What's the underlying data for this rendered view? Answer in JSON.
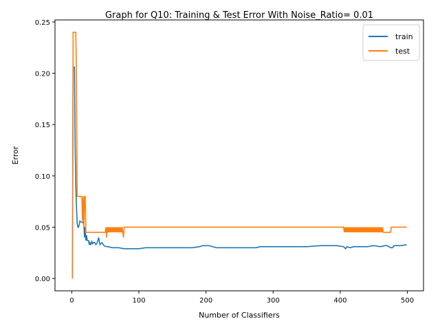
{
  "chart_data": {
    "type": "line",
    "title": "Graph for Q10: Training & Test Error With Noise_Ratio= 0.01",
    "xlabel": "Number of Classifiers",
    "ylabel": "Error",
    "xlim": [
      -25,
      524
    ],
    "ylim": [
      -0.012,
      0.252
    ],
    "xticks": [
      0,
      100,
      200,
      300,
      400,
      500
    ],
    "xtick_labels": [
      "0",
      "100",
      "200",
      "300",
      "400",
      "500"
    ],
    "yticks": [
      0,
      0.05,
      0.1,
      0.15,
      0.2,
      0.25
    ],
    "ytick_labels": [
      "0.00",
      "0.05",
      "0.10",
      "0.15",
      "0.20",
      "0.25"
    ],
    "grid": false,
    "legend": {
      "position": "top-right",
      "entries": [
        "train",
        "test"
      ]
    },
    "series": [
      {
        "name": "train",
        "color": "#1f77b4",
        "x": [
          1,
          2,
          3,
          4,
          5,
          6,
          7,
          8,
          9,
          10,
          11,
          12,
          14,
          16,
          18,
          19,
          20,
          21,
          22,
          23,
          24,
          25,
          26,
          27,
          28,
          29,
          30,
          31,
          32,
          34,
          36,
          38,
          40,
          42,
          45,
          48,
          52,
          55,
          60,
          70,
          78,
          80,
          90,
          100,
          110,
          120,
          130,
          140,
          160,
          180,
          190,
          195,
          200,
          205,
          210,
          215,
          220,
          230,
          260,
          275,
          280,
          285,
          290,
          320,
          350,
          370,
          380,
          395,
          405,
          408,
          410,
          415,
          420,
          430,
          440,
          450,
          460,
          466,
          470,
          475,
          478,
          480,
          485,
          490,
          499
        ],
        "y": [
          0.0,
          0.206,
          0.206,
          0.206,
          0.13,
          0.09,
          0.07,
          0.054,
          0.05,
          0.05,
          0.052,
          0.056,
          0.055,
          0.055,
          0.053,
          0.04,
          0.05,
          0.037,
          0.042,
          0.037,
          0.037,
          0.037,
          0.033,
          0.035,
          0.033,
          0.034,
          0.036,
          0.034,
          0.035,
          0.035,
          0.033,
          0.035,
          0.04,
          0.033,
          0.035,
          0.032,
          0.031,
          0.031,
          0.03,
          0.03,
          0.029,
          0.029,
          0.029,
          0.029,
          0.03,
          0.03,
          0.03,
          0.03,
          0.03,
          0.03,
          0.031,
          0.032,
          0.032,
          0.032,
          0.031,
          0.03,
          0.03,
          0.03,
          0.03,
          0.03,
          0.031,
          0.031,
          0.031,
          0.031,
          0.031,
          0.032,
          0.032,
          0.032,
          0.031,
          0.029,
          0.031,
          0.03,
          0.031,
          0.031,
          0.031,
          0.032,
          0.031,
          0.032,
          0.032,
          0.03,
          0.03,
          0.032,
          0.032,
          0.032,
          0.033
        ]
      },
      {
        "name": "test",
        "color": "#ff7f0e",
        "x": [
          1,
          2,
          3,
          4,
          5,
          6,
          7,
          8,
          9,
          10,
          11,
          12,
          13,
          14,
          15,
          16,
          17,
          18,
          19,
          20,
          21,
          22,
          23,
          24,
          25,
          50,
          51,
          52,
          53,
          54,
          55,
          56,
          57,
          58,
          59,
          60,
          61,
          62,
          63,
          64,
          65,
          66,
          67,
          68,
          69,
          70,
          71,
          72,
          73,
          74,
          75,
          76,
          77,
          78,
          79,
          405,
          406,
          407,
          408,
          409,
          410,
          411,
          412,
          413,
          414,
          415,
          416,
          417,
          418,
          419,
          420,
          421,
          422,
          423,
          424,
          425,
          426,
          427,
          428,
          429,
          430,
          431,
          432,
          433,
          434,
          435,
          436,
          437,
          438,
          439,
          440,
          441,
          442,
          443,
          444,
          445,
          446,
          447,
          448,
          449,
          450,
          451,
          452,
          453,
          454,
          455,
          456,
          457,
          458,
          459,
          460,
          461,
          462,
          463,
          464,
          465,
          470,
          472,
          473,
          474,
          475,
          476,
          477,
          480,
          490,
          499
        ],
        "y": [
          0.0,
          0.24,
          0.24,
          0.24,
          0.24,
          0.24,
          0.2,
          0.08,
          0.08,
          0.08,
          0.08,
          0.08,
          0.08,
          0.08,
          0.08,
          0.056,
          0.08,
          0.05,
          0.08,
          0.08,
          0.045,
          0.045,
          0.045,
          0.045,
          0.045,
          0.045,
          0.05,
          0.04,
          0.05,
          0.045,
          0.05,
          0.045,
          0.05,
          0.045,
          0.05,
          0.045,
          0.05,
          0.045,
          0.05,
          0.045,
          0.05,
          0.045,
          0.05,
          0.045,
          0.05,
          0.045,
          0.05,
          0.045,
          0.05,
          0.045,
          0.05,
          0.045,
          0.04,
          0.05,
          0.05,
          0.05,
          0.045,
          0.05,
          0.045,
          0.05,
          0.045,
          0.05,
          0.045,
          0.05,
          0.045,
          0.05,
          0.045,
          0.05,
          0.045,
          0.05,
          0.045,
          0.05,
          0.045,
          0.05,
          0.045,
          0.05,
          0.045,
          0.05,
          0.045,
          0.05,
          0.045,
          0.05,
          0.045,
          0.05,
          0.045,
          0.05,
          0.045,
          0.05,
          0.045,
          0.05,
          0.045,
          0.05,
          0.045,
          0.05,
          0.045,
          0.05,
          0.045,
          0.05,
          0.045,
          0.05,
          0.045,
          0.05,
          0.045,
          0.05,
          0.045,
          0.05,
          0.045,
          0.05,
          0.045,
          0.05,
          0.045,
          0.05,
          0.045,
          0.05,
          0.045,
          0.045,
          0.045,
          0.045,
          0.045,
          0.045,
          0.045,
          0.05,
          0.05,
          0.05,
          0.05,
          0.05
        ]
      }
    ]
  }
}
